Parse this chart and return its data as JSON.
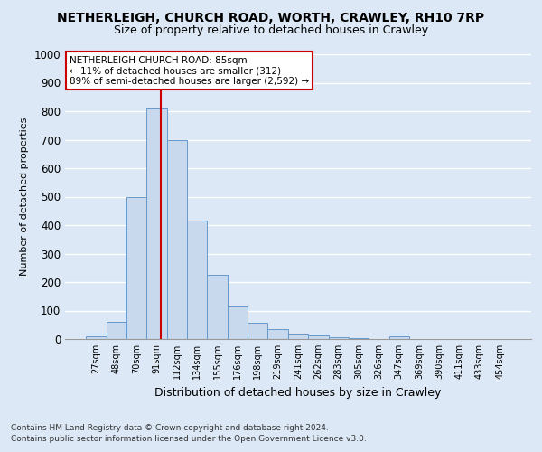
{
  "title": "NETHERLEIGH, CHURCH ROAD, WORTH, CRAWLEY, RH10 7RP",
  "subtitle": "Size of property relative to detached houses in Crawley",
  "xlabel": "Distribution of detached houses by size in Crawley",
  "ylabel": "Number of detached properties",
  "bin_labels": [
    "27sqm",
    "48sqm",
    "70sqm",
    "91sqm",
    "112sqm",
    "134sqm",
    "155sqm",
    "176sqm",
    "198sqm",
    "219sqm",
    "241sqm",
    "262sqm",
    "283sqm",
    "305sqm",
    "326sqm",
    "347sqm",
    "369sqm",
    "390sqm",
    "411sqm",
    "433sqm",
    "454sqm"
  ],
  "bar_values": [
    8,
    60,
    500,
    810,
    700,
    415,
    225,
    115,
    58,
    35,
    17,
    12,
    7,
    3,
    1,
    10,
    1,
    0,
    0,
    0,
    0
  ],
  "bar_color": "#c8d9ee",
  "bar_edge_color": "#6699cc",
  "ylim": [
    0,
    1000
  ],
  "yticks": [
    0,
    100,
    200,
    300,
    400,
    500,
    600,
    700,
    800,
    900,
    1000
  ],
  "property_line_color": "#cc0000",
  "annotation_title": "NETHERLEIGH CHURCH ROAD: 85sqm",
  "annotation_line1": "← 11% of detached houses are smaller (312)",
  "annotation_line2": "89% of semi-detached houses are larger (2,592) →",
  "annotation_box_edge_color": "#cc0000",
  "footnote1": "Contains HM Land Registry data © Crown copyright and database right 2024.",
  "footnote2": "Contains public sector information licensed under the Open Government Licence v3.0.",
  "bg_color": "#dce8f5",
  "plot_bg_color": "#dce8f5",
  "grid_color": "#ffffff",
  "title_fontsize": 10,
  "subtitle_fontsize": 9,
  "ylabel_fontsize": 8,
  "xlabel_fontsize": 9
}
